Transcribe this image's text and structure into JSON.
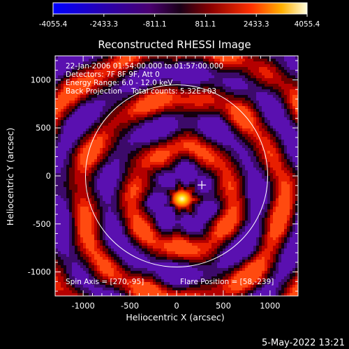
{
  "chart_data": {
    "type": "heatmap",
    "title": "Reconstructed RHESSI Image",
    "xlabel": "Heliocentric X (arcsec)",
    "ylabel": "Heliocentric Y (arcsec)",
    "xlim": [
      -1300,
      1300
    ],
    "ylim": [
      -1250,
      1250
    ],
    "x_ticks": [
      -1000,
      -500,
      0,
      500,
      1000
    ],
    "y_ticks": [
      -1000,
      -500,
      0,
      500,
      1000
    ],
    "colorbar": {
      "min": -4055.4,
      "max": 4055.4,
      "tick_labels": [
        "-4055.4",
        "-2433.3",
        "-811.1",
        "811.1",
        "2433.3",
        "4055.4"
      ]
    },
    "info_lines": [
      "22-Jan-2006 01:54:00.000 to 01:57:00.000",
      "Detectors: 7F 8F 9F, Att 0",
      "Energy Range: 6.0 - 12.0 keV",
      "Back Projection    Total counts: 5.32E+03"
    ],
    "spin_axis_text": "Spin Axis = [270,-95]",
    "flare_position_text": "Flare Position = [58,-239]",
    "flare_position": [
      58,
      -239
    ],
    "spin_axis": [
      270,
      -95
    ],
    "solar_disk_radius_arcsec": 975,
    "timestamp": "5-May-2022 13:21"
  }
}
